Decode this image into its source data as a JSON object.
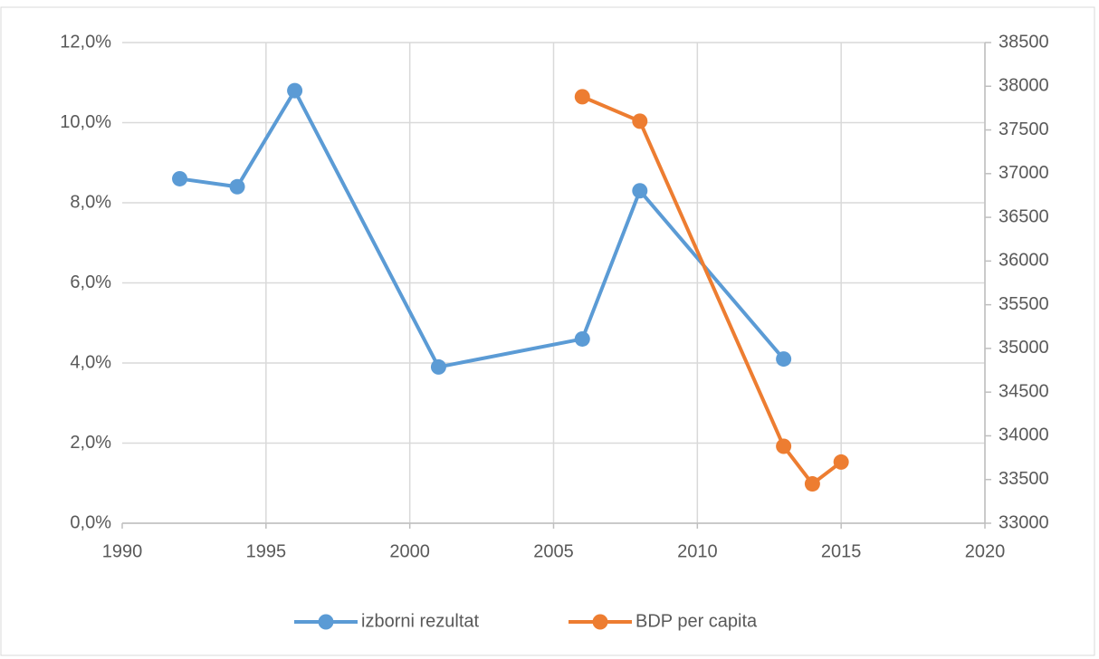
{
  "chart_data": {
    "type": "line",
    "xlim": [
      1990,
      2020
    ],
    "xticks": [
      1990,
      1995,
      2000,
      2005,
      2010,
      2015,
      2020
    ],
    "ylim": [
      0,
      12
    ],
    "yticks": [
      {
        "value": 0,
        "label": "0,0%"
      },
      {
        "value": 2,
        "label": "2,0%"
      },
      {
        "value": 4,
        "label": "4,0%"
      },
      {
        "value": 6,
        "label": "6,0%"
      },
      {
        "value": 8,
        "label": "8,0%"
      },
      {
        "value": 10,
        "label": "10,0%"
      },
      {
        "value": 12,
        "label": "12,0%"
      }
    ],
    "y2lim": [
      33000,
      38500
    ],
    "y2ticks": [
      33000,
      33500,
      34000,
      34500,
      35000,
      35500,
      36000,
      36500,
      37000,
      37500,
      38000,
      38500
    ],
    "grid": true,
    "legend": "bottom",
    "series": [
      {
        "name": "izborni rezultat",
        "color": "#5b9bd5",
        "axis": "y",
        "x": [
          1992,
          1994,
          1996,
          2001,
          2006,
          2008,
          2013
        ],
        "values": [
          8.6,
          8.4,
          10.8,
          3.9,
          4.6,
          8.3,
          4.1
        ]
      },
      {
        "name": "BDP per capita",
        "color": "#ed7d31",
        "axis": "y2",
        "x": [
          2006,
          2008,
          2013,
          2014,
          2015
        ],
        "values": [
          37880,
          37600,
          33880,
          33450,
          33700
        ]
      }
    ]
  }
}
